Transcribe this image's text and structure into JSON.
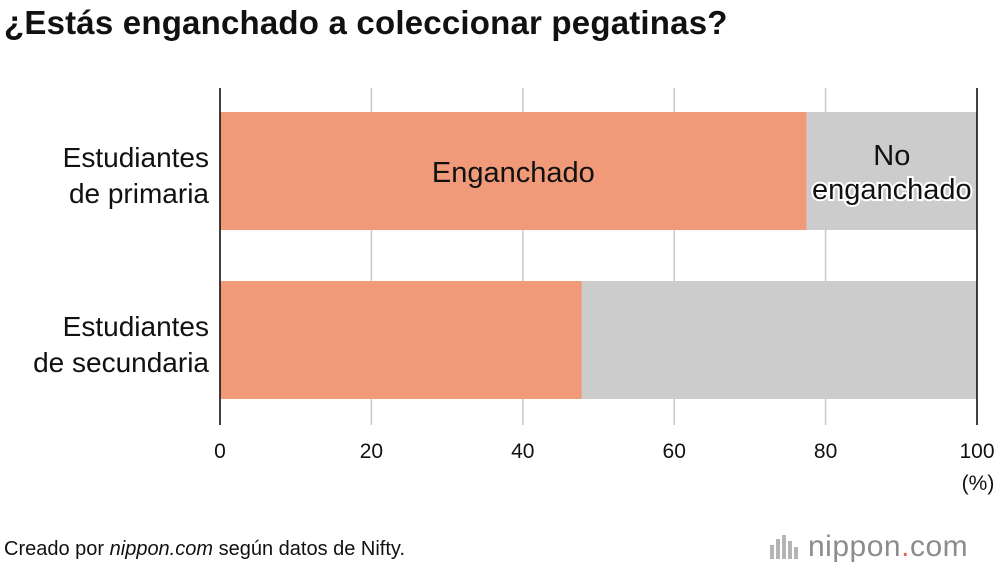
{
  "title": "¿Estás enganchado a coleccionar pegatinas?",
  "chart_data": {
    "type": "bar",
    "orientation": "horizontal",
    "stacked": true,
    "categories": [
      [
        "Estudiantes",
        "de primaria"
      ],
      [
        "Estudiantes",
        "de secundaria"
      ]
    ],
    "series": [
      {
        "name": "Enganchado",
        "color": "#f19a79",
        "values": [
          77.5,
          47.8
        ]
      },
      {
        "name": "No enganchado",
        "color": "#cccccc",
        "values": [
          22.5,
          52.2
        ]
      }
    ],
    "series_labels": [
      {
        "lines": [
          "Enganchado"
        ]
      },
      {
        "lines": [
          "No",
          "enganchado"
        ]
      }
    ],
    "xlim": [
      0,
      100
    ],
    "xticks": [
      0,
      20,
      40,
      60,
      80,
      100
    ],
    "xunit": "(%)",
    "grid": true
  },
  "footer": {
    "source_prefix": "Creado por ",
    "source_site": "nippon.com",
    "source_suffix": " según datos de Nifty."
  },
  "logo": {
    "word": "nippon",
    "dot": ".",
    "tld": "com"
  }
}
